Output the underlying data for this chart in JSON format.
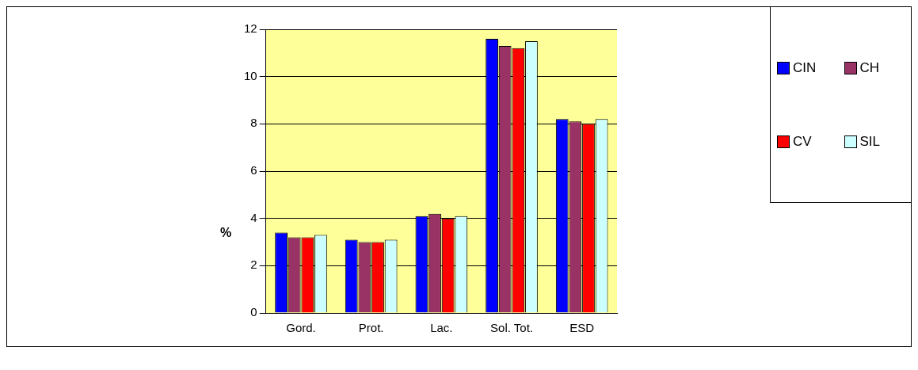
{
  "chart_data": {
    "type": "bar",
    "ylabel": "%",
    "categories": [
      "Gord.",
      "Prot.",
      "Lac.",
      "Sol. Tot.",
      "ESD"
    ],
    "series": [
      {
        "name": "CIN",
        "color": "#0000ff",
        "values": [
          3.4,
          3.1,
          4.1,
          11.6,
          8.2
        ]
      },
      {
        "name": "CH",
        "color": "#993366",
        "values": [
          3.2,
          3.0,
          4.2,
          11.3,
          8.1
        ]
      },
      {
        "name": "CV",
        "color": "#ff0000",
        "values": [
          3.2,
          3.0,
          4.0,
          11.2,
          8.0
        ]
      },
      {
        "name": "SIL",
        "color": "#ccffff",
        "values": [
          3.3,
          3.1,
          4.1,
          11.5,
          8.2
        ]
      }
    ],
    "ylim": [
      0,
      12
    ],
    "yticks": [
      0,
      2,
      4,
      6,
      8,
      10,
      12
    ],
    "grid": "y",
    "legend": "right"
  }
}
